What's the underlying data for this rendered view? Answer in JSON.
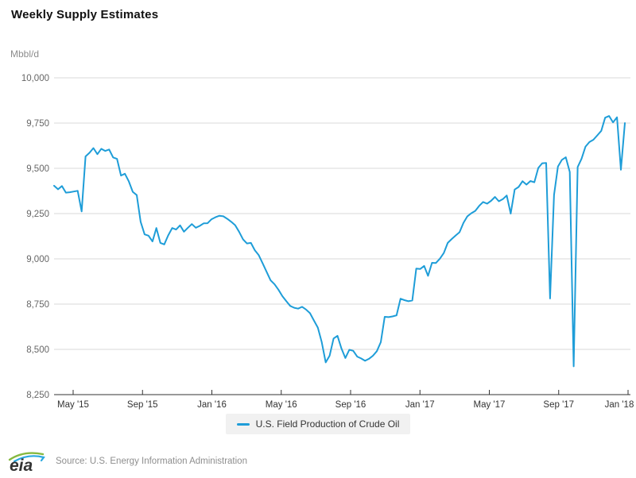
{
  "page": {
    "title": "Weekly Supply Estimates"
  },
  "axis": {
    "unit_label": "Mbbl/d",
    "y_tick_values": [
      10000,
      9750,
      9500,
      9250,
      9000,
      8750,
      8500,
      8250
    ],
    "y_tick_labels": [
      "10,000",
      "9,750",
      "9,500",
      "9,250",
      "9,000",
      "8,750",
      "8,500",
      "8,250"
    ],
    "x_tick_labels": [
      "May '15",
      "Sep '15",
      "Jan '16",
      "May '16",
      "Sep '16",
      "Jan '17",
      "May '17",
      "Sep '17",
      "Jan '18"
    ]
  },
  "chart_data": {
    "type": "line",
    "title": "Weekly Supply Estimates",
    "ylabel": "Mbbl/d",
    "ylim": [
      8250,
      10000
    ],
    "grid": "horizontal",
    "legend_position": "bottom-center",
    "x_axis": "weekly observations, Apr 2015 through Jan 2018",
    "x_tick_labels": [
      "May '15",
      "Sep '15",
      "Jan '16",
      "May '16",
      "Sep '16",
      "Jan '17",
      "May '17",
      "Sep '17",
      "Jan '18"
    ],
    "series": [
      {
        "name": "U.S. Field Production of Crude Oil",
        "color": "#1e9dd8",
        "values": [
          9404,
          9384,
          9402,
          9366,
          9368,
          9372,
          9376,
          9262,
          9566,
          9586,
          9612,
          9578,
          9608,
          9596,
          9604,
          9560,
          9552,
          9460,
          9470,
          9427,
          9370,
          9352,
          9205,
          9135,
          9128,
          9096,
          9170,
          9088,
          9080,
          9130,
          9170,
          9162,
          9185,
          9150,
          9172,
          9192,
          9172,
          9182,
          9196,
          9197,
          9219,
          9230,
          9238,
          9235,
          9221,
          9205,
          9186,
          9150,
          9108,
          9085,
          9088,
          9048,
          9020,
          8975,
          8928,
          8882,
          8860,
          8830,
          8794,
          8766,
          8740,
          8730,
          8725,
          8735,
          8720,
          8700,
          8660,
          8620,
          8540,
          8428,
          8465,
          8560,
          8575,
          8505,
          8452,
          8498,
          8492,
          8460,
          8450,
          8437,
          8448,
          8465,
          8490,
          8540,
          8680,
          8678,
          8682,
          8688,
          8780,
          8772,
          8766,
          8770,
          8946,
          8944,
          8961,
          8906,
          8978,
          8977,
          9001,
          9032,
          9088,
          9109,
          9129,
          9147,
          9199,
          9235,
          9252,
          9265,
          9293,
          9314,
          9305,
          9320,
          9342,
          9318,
          9330,
          9350,
          9250,
          9383,
          9397,
          9429,
          9410,
          9430,
          9423,
          9502,
          9528,
          9530,
          8781,
          9353,
          9510,
          9547,
          9561,
          9480,
          8406,
          9507,
          9553,
          9620,
          9645,
          9658,
          9682,
          9707,
          9780,
          9789,
          9754,
          9782,
          9492,
          9750
        ]
      }
    ]
  },
  "legend": {
    "label": "U.S. Field Production of Crude Oil"
  },
  "footer": {
    "logo_text": "eia",
    "source": "Source: U.S. Energy Information Administration"
  },
  "colors": {
    "line": "#1e9dd8",
    "grid": "#d9d9d9",
    "axis": "#333333",
    "y_label": "#666666",
    "x_label": "#333333",
    "legend_bg": "#f1f1f1",
    "logo_green": "#86b940",
    "logo_blue": "#2aa8df",
    "logo_text": "#333333"
  }
}
